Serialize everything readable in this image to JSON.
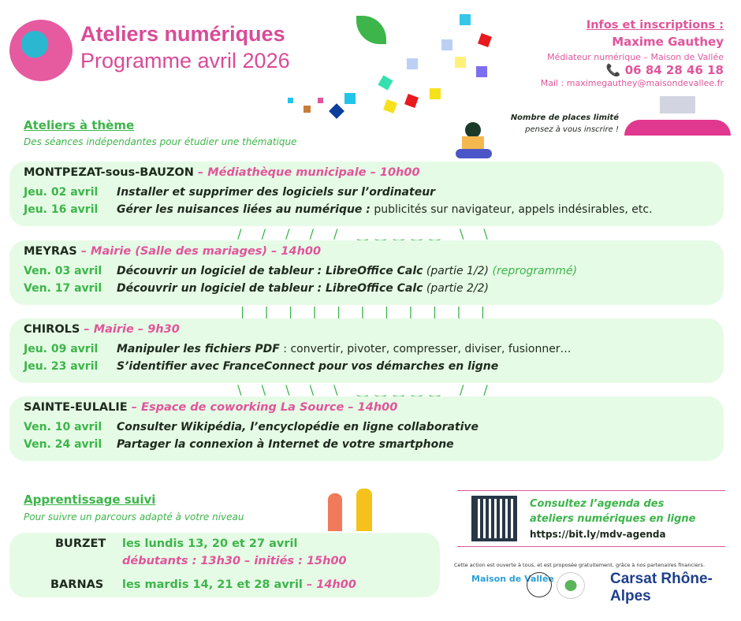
{
  "header": {
    "title": "Ateliers numériques",
    "subtitle": "Programme avril 2026"
  },
  "contact": {
    "heading": "Infos et inscriptions :",
    "name": "Maxime Gauthey",
    "role": "Médiateur numérique – Maison de Vallée",
    "phone": "06 84 28 46 18",
    "mail": "Mail : maximegauthey@maisondevallee.fr",
    "note1": "Nombre de places limité",
    "note2": "pensez à vous inscrire !"
  },
  "themes": {
    "title": "Ateliers à thème",
    "subtitle": "Des séances indépendantes pour étudier une thématique",
    "sessions": [
      {
        "town": "MONTPEZAT-sous-BAUZON",
        "place": " – Médiathèque municipale – 10h00",
        "rows": [
          {
            "date": "Jeu. 02 avril",
            "title": "Installer et supprimer des logiciels sur l’ordinateur",
            "extra": "",
            "note": ""
          },
          {
            "date": "Jeu. 16 avril",
            "title": "Gérer les nuisances liées au numérique :",
            "extra": " publicités sur navigateur, appels indésirables, etc.",
            "note": ""
          }
        ]
      },
      {
        "town": "MEYRAS",
        "place": " – Mairie (Salle des mariages) – 14h00",
        "rows": [
          {
            "date": "Ven. 03 avril",
            "title": "Découvrir un logiciel de tableur : LibreOffice Calc",
            "extra": " (partie 1/2)",
            "note": " (reprogrammé)"
          },
          {
            "date": "Ven. 17 avril",
            "title": "Découvrir un logiciel de tableur : LibreOffice Calc",
            "extra": " (partie 2/2)",
            "note": ""
          }
        ]
      },
      {
        "town": "CHIROLS",
        "place": " – Mairie – 9h30",
        "rows": [
          {
            "date": "Jeu. 09 avril",
            "title": "Manipuler les fichiers PDF",
            "extra": " : convertir, pivoter, compresser, diviser, fusionner…",
            "note": ""
          },
          {
            "date": "Jeu. 23 avril",
            "title": "S’identifier avec FranceConnect pour vos démarches en ligne",
            "extra": "",
            "note": ""
          }
        ]
      },
      {
        "town": "SAINTE-EULALIE",
        "place": " – Espace de coworking La Source – 14h00",
        "rows": [
          {
            "date": "Ven. 10 avril",
            "title": "Consulter Wikipédia, l’encyclopédie en ligne collaborative",
            "extra": "",
            "note": ""
          },
          {
            "date": "Ven. 24 avril",
            "title": "Partager la connexion à Internet de votre smartphone",
            "extra": "",
            "note": ""
          }
        ]
      }
    ]
  },
  "followup": {
    "title": "Apprentissage suivi",
    "subtitle": "Pour suivre un parcours adapté à votre niveau",
    "burzet": {
      "town": "BURZET",
      "dates": "les lundis 13, 20 et 27 avril",
      "levels": "débutants : 13h30 – initiés : 15h00"
    },
    "barnas": {
      "town": "BARNAS",
      "dates": "les mardis 14, 21 et 28 avril",
      "time": " – 14h00"
    }
  },
  "agenda": {
    "line1": "Consultez l’agenda des",
    "line2": "ateliers numériques en ligne",
    "url": "https://bit.ly/mdv-agenda"
  },
  "footer": {
    "text": "Cette action est ouverte à tous, et est proposée gratuitement, grâce à nos partenaires financiers.",
    "logos": [
      "Maison de Vallée",
      "Carsat Rhône-Alpes"
    ]
  },
  "colors": {
    "pink": "#e0559b",
    "green": "#3db54a",
    "panel": "#e6fbe6"
  }
}
